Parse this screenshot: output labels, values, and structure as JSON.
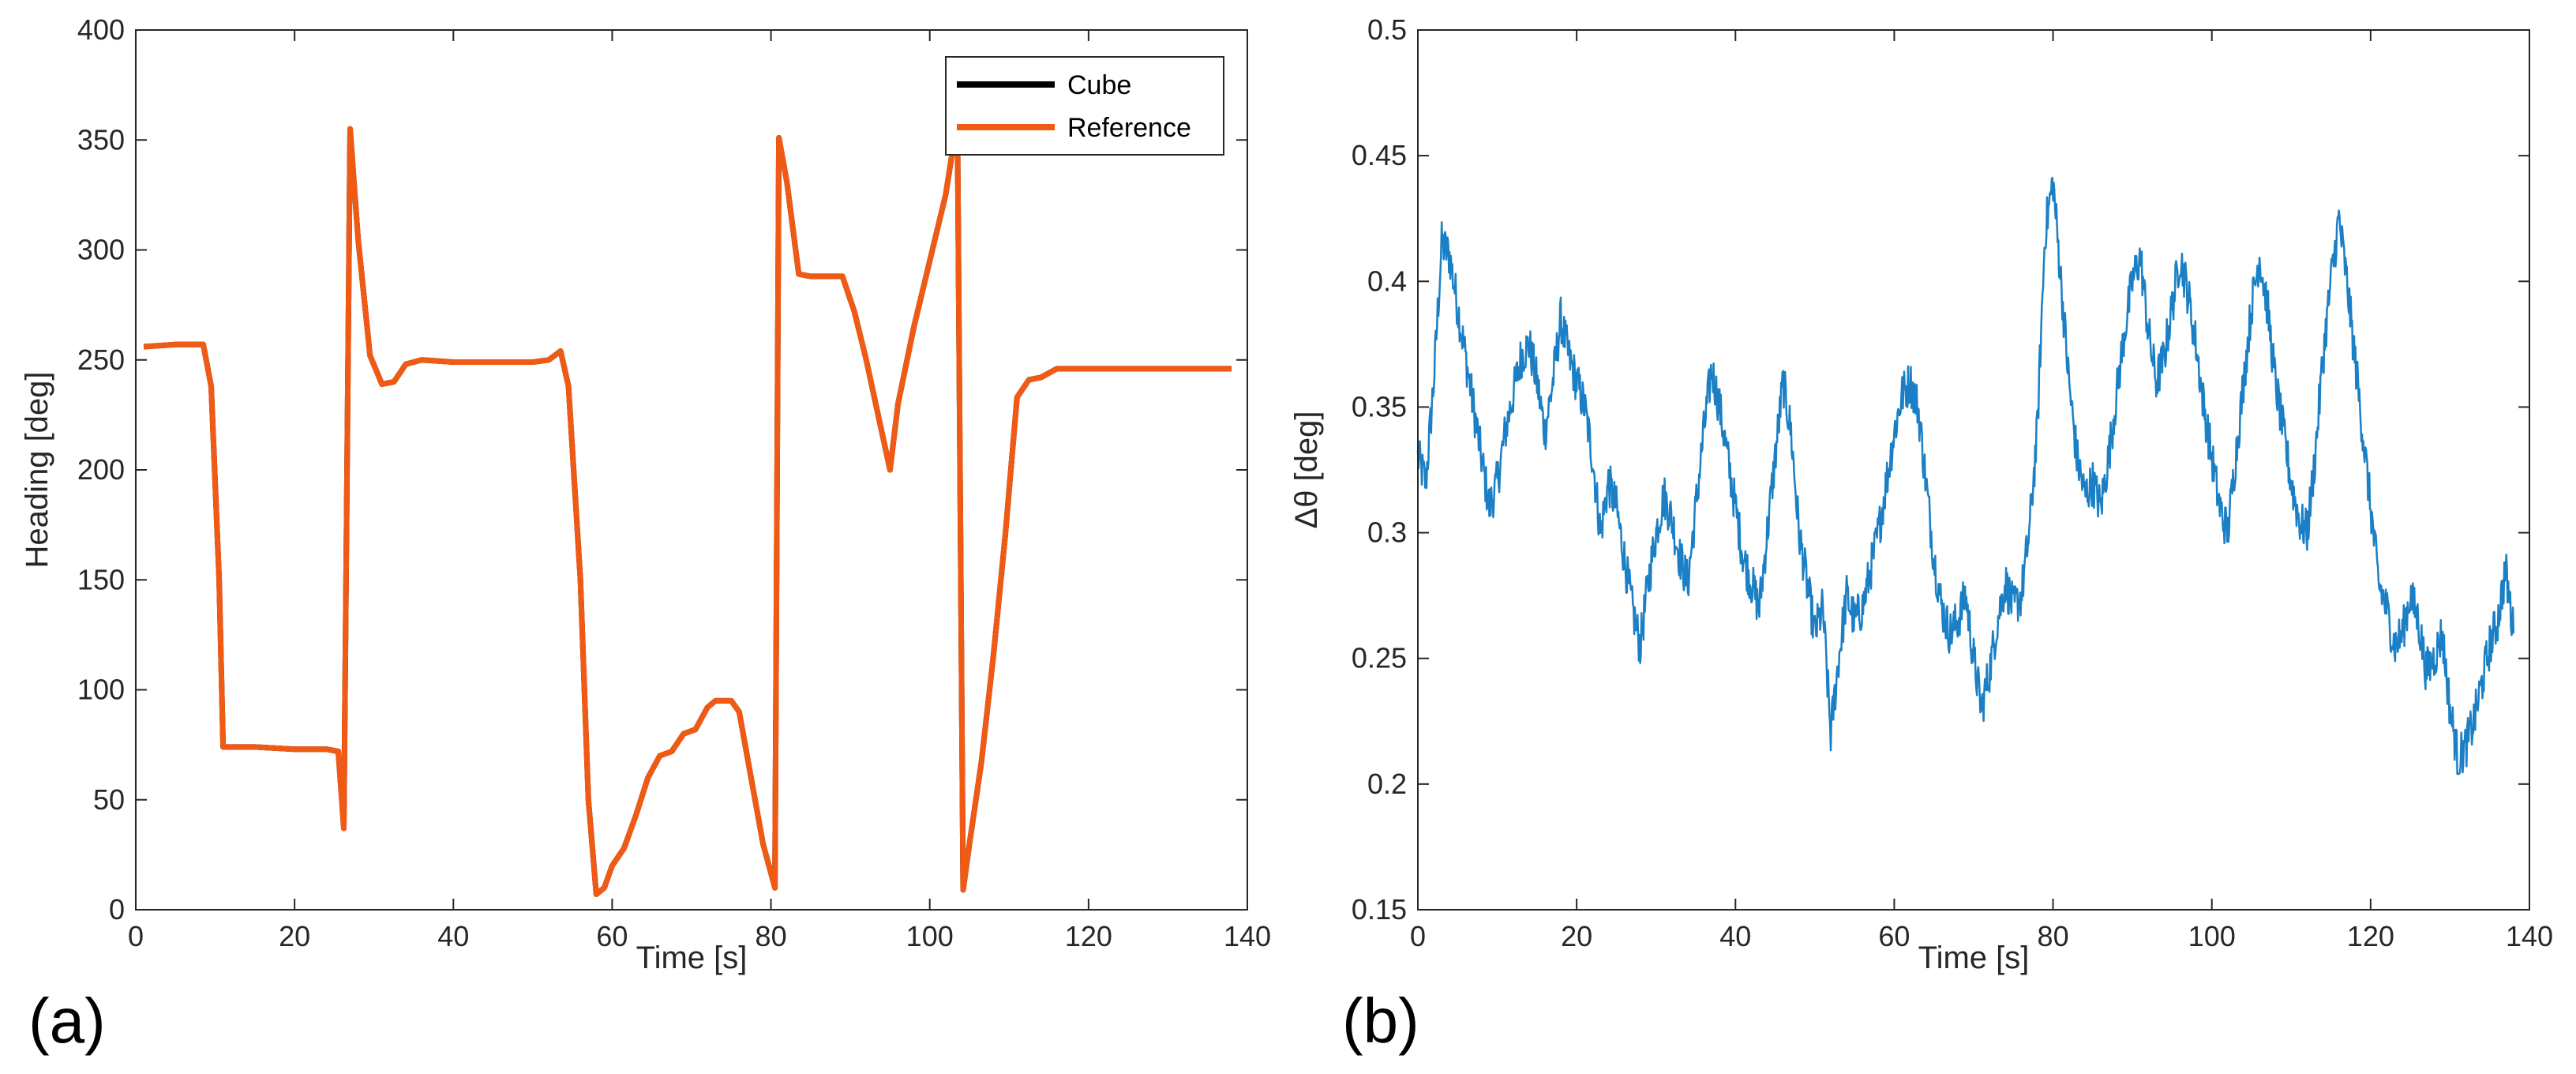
{
  "chart_data": [
    {
      "panel": "(a)",
      "type": "line",
      "xlabel": "Time [s]",
      "ylabel": "Heading [deg]",
      "xlim": [
        0,
        140
      ],
      "ylim": [
        0,
        400
      ],
      "xticks": [
        0,
        20,
        40,
        60,
        80,
        100,
        120,
        140
      ],
      "yticks": [
        0,
        50,
        100,
        150,
        200,
        250,
        300,
        350,
        400
      ],
      "legend": {
        "placement": "top-right",
        "entries": [
          "Cube",
          "Reference"
        ]
      },
      "colors": {
        "Cube": "#000000",
        "Reference": "#f05a14"
      },
      "series": [
        {
          "name": "Reference",
          "color": "#f05a14",
          "x": [
            1,
            5,
            8.5,
            9.5,
            10.5,
            11,
            15,
            20,
            24,
            25.5,
            26.2,
            27,
            28,
            29.5,
            31,
            32.5,
            34,
            36,
            40,
            45,
            50,
            52,
            53.5,
            54.5,
            56,
            57,
            58,
            59,
            60,
            61.5,
            63,
            64.5,
            66,
            67.5,
            69,
            70.5,
            72,
            73,
            75,
            76,
            77.5,
            79,
            80.5,
            81,
            82,
            83.5,
            85,
            89,
            90.5,
            92,
            93.5,
            95,
            96,
            98,
            100,
            102,
            103,
            103.5,
            104.2,
            105,
            106.5,
            108,
            109.5,
            111,
            112.5,
            114,
            116,
            120,
            130,
            138
          ],
          "y": [
            256,
            257,
            257,
            238,
            150,
            74,
            74,
            73,
            73,
            72,
            37,
            355,
            305,
            252,
            239,
            240,
            248,
            250,
            249,
            249,
            249,
            250,
            254,
            238,
            150,
            50,
            7,
            10,
            20,
            28,
            43,
            60,
            70,
            72,
            80,
            82,
            92,
            95,
            95,
            90,
            60,
            30,
            10,
            351,
            331,
            289,
            288,
            288,
            272,
            250,
            225,
            200,
            230,
            265,
            295,
            325,
            348,
            352,
            9,
            30,
            67,
            115,
            170,
            233,
            241,
            242,
            246,
            246,
            246,
            246
          ]
        },
        {
          "name": "Cube",
          "color": "#000000",
          "x": [
            1,
            5,
            8.5,
            9.5,
            10.5,
            11,
            15,
            20,
            24,
            25.5,
            26.2,
            27,
            28,
            29.5,
            31,
            32.5,
            34,
            36,
            40,
            45,
            50,
            52,
            53.5,
            54.5,
            56,
            57,
            58,
            59,
            60,
            61.5,
            63,
            64.5,
            66,
            67.5,
            69,
            70.5,
            72,
            73,
            75,
            76,
            77.5,
            79,
            80.5,
            81,
            82,
            83.5,
            85,
            89,
            90.5,
            92,
            93.5,
            95,
            96,
            98,
            100,
            102,
            103,
            103.5,
            104.2,
            105,
            106.5,
            108,
            109.5,
            111,
            112.5,
            114,
            116,
            120,
            130,
            138
          ],
          "y": [
            256,
            257,
            257,
            238,
            150,
            74,
            74,
            73,
            73,
            72,
            37,
            355,
            305,
            252,
            239,
            240,
            248,
            250,
            249,
            249,
            249,
            250,
            254,
            238,
            150,
            50,
            7,
            10,
            20,
            28,
            43,
            60,
            70,
            72,
            80,
            82,
            92,
            95,
            95,
            90,
            60,
            30,
            10,
            351,
            331,
            289,
            288,
            288,
            272,
            250,
            225,
            200,
            230,
            265,
            295,
            325,
            348,
            352,
            9,
            30,
            67,
            115,
            170,
            233,
            241,
            242,
            246,
            246,
            246,
            246
          ]
        }
      ]
    },
    {
      "panel": "(b)",
      "type": "line",
      "xlabel": "Time [s]",
      "ylabel": "Δθ [deg]",
      "xlim": [
        0,
        140
      ],
      "ylim": [
        0.15,
        0.5
      ],
      "xticks": [
        0,
        20,
        40,
        60,
        80,
        100,
        120,
        140
      ],
      "yticks": [
        0.15,
        0.2,
        0.25,
        0.3,
        0.35,
        0.4,
        0.45,
        0.5
      ],
      "color": "#1a7fc4",
      "series": [
        {
          "name": "Δθ",
          "color": "#1a7fc4",
          "x": [
            0,
            1,
            2,
            3,
            4,
            5,
            6,
            7,
            8,
            9,
            10,
            11,
            12,
            13,
            14,
            15,
            16,
            17,
            18,
            19,
            20,
            21,
            22,
            23,
            24,
            25,
            26,
            27,
            28,
            29,
            30,
            31,
            32,
            33,
            34,
            35,
            36,
            37,
            38,
            39,
            40,
            41,
            42,
            43,
            44,
            45,
            46,
            47,
            48,
            49,
            50,
            51,
            52,
            53,
            54,
            55,
            56,
            57,
            58,
            59,
            60,
            61,
            62,
            63,
            64,
            65,
            66,
            67,
            68,
            69,
            70,
            71,
            72,
            73,
            74,
            75,
            76,
            77,
            78,
            79,
            80,
            81,
            82,
            83,
            84,
            85,
            86,
            87,
            88,
            89,
            90,
            91,
            92,
            93,
            94,
            95,
            96,
            97,
            98,
            99,
            100,
            101,
            102,
            103,
            104,
            105,
            106,
            107,
            108,
            109,
            110,
            111,
            112,
            113,
            114,
            115,
            116,
            117,
            118,
            119,
            120,
            121,
            122,
            123,
            124,
            125,
            126,
            127,
            128,
            129,
            130,
            131,
            132,
            133,
            134,
            135,
            136,
            137,
            138
          ],
          "y": [
            0.33,
            0.32,
            0.36,
            0.415,
            0.41,
            0.39,
            0.37,
            0.35,
            0.33,
            0.31,
            0.32,
            0.34,
            0.355,
            0.37,
            0.375,
            0.36,
            0.34,
            0.36,
            0.385,
            0.37,
            0.36,
            0.35,
            0.33,
            0.3,
            0.32,
            0.31,
            0.29,
            0.27,
            0.255,
            0.28,
            0.3,
            0.315,
            0.305,
            0.29,
            0.28,
            0.31,
            0.34,
            0.365,
            0.35,
            0.33,
            0.31,
            0.29,
            0.28,
            0.27,
            0.3,
            0.33,
            0.36,
            0.34,
            0.3,
            0.28,
            0.26,
            0.27,
            0.22,
            0.25,
            0.275,
            0.265,
            0.27,
            0.285,
            0.3,
            0.32,
            0.34,
            0.355,
            0.36,
            0.35,
            0.32,
            0.29,
            0.27,
            0.26,
            0.265,
            0.275,
            0.25,
            0.23,
            0.245,
            0.265,
            0.28,
            0.27,
            0.275,
            0.3,
            0.34,
            0.42,
            0.44,
            0.4,
            0.36,
            0.33,
            0.315,
            0.32,
            0.31,
            0.33,
            0.355,
            0.38,
            0.4,
            0.41,
            0.38,
            0.36,
            0.37,
            0.39,
            0.41,
            0.395,
            0.375,
            0.35,
            0.33,
            0.31,
            0.3,
            0.33,
            0.36,
            0.39,
            0.41,
            0.39,
            0.36,
            0.34,
            0.32,
            0.305,
            0.3,
            0.33,
            0.37,
            0.4,
            0.425,
            0.4,
            0.37,
            0.34,
            0.31,
            0.28,
            0.27,
            0.255,
            0.26,
            0.275,
            0.265,
            0.245,
            0.25,
            0.26,
            0.23,
            0.21,
            0.215,
            0.225,
            0.24,
            0.255,
            0.265,
            0.285,
            0.26
          ]
        }
      ]
    }
  ]
}
